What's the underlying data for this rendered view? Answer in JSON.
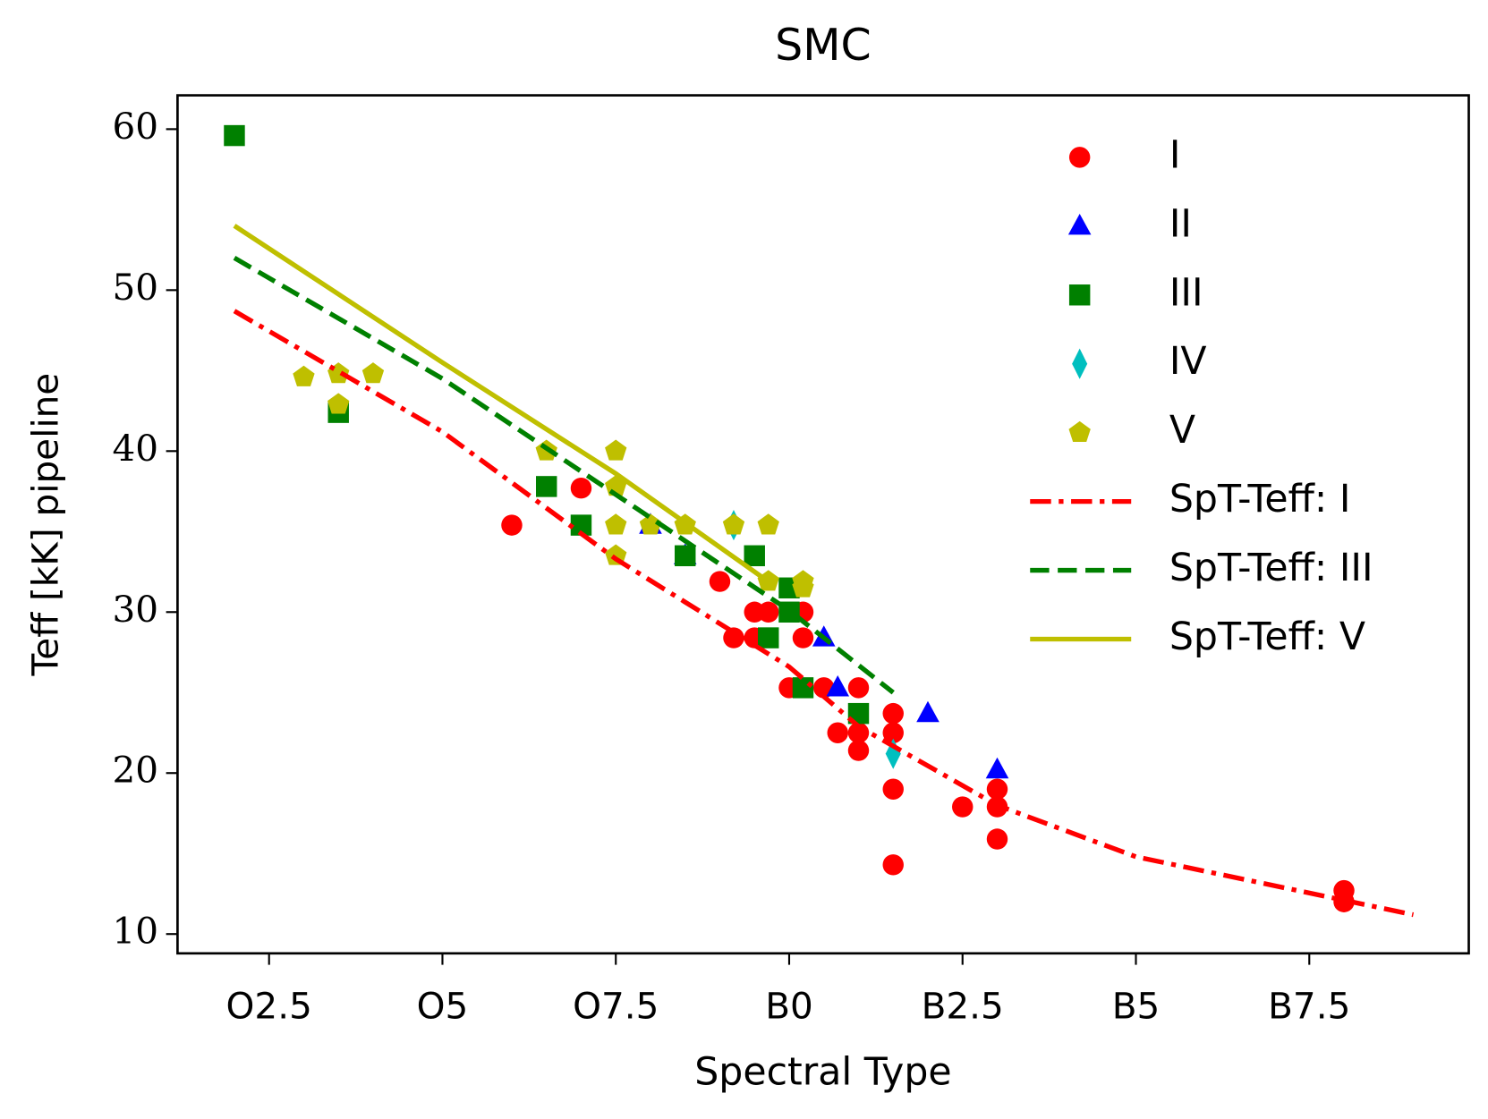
{
  "chart_data": {
    "type": "scatter",
    "title": "SMC",
    "xlabel": "Spectral Type",
    "ylabel": "Teff [kK] pipeline",
    "xlim": [
      1.18,
      19.8
    ],
    "ylim": [
      8.8,
      62.1
    ],
    "xticks": [
      {
        "value": 2.5,
        "label": "O2.5"
      },
      {
        "value": 5,
        "label": "O5"
      },
      {
        "value": 7.5,
        "label": "O7.5"
      },
      {
        "value": 10,
        "label": "B0"
      },
      {
        "value": 12.5,
        "label": "B2.5"
      },
      {
        "value": 15,
        "label": "B5"
      },
      {
        "value": 17.5,
        "label": "B7.5"
      }
    ],
    "yticks": [
      10,
      20,
      30,
      40,
      50,
      60
    ],
    "legend": "upper right",
    "series": [
      {
        "name": "I",
        "color": "#ff0000",
        "marker": "circle",
        "x": [
          6.0,
          7.0,
          9.0,
          9.2,
          9.5,
          9.5,
          9.7,
          10.2,
          10.2,
          10.0,
          10.5,
          11.0,
          10.7,
          11.0,
          11.0,
          11.5,
          11.5,
          11.5,
          11.5,
          12.5,
          13.0,
          13.0,
          13.0,
          18.0,
          18.0
        ],
        "values": [
          35.4,
          37.7,
          31.9,
          28.4,
          30.0,
          28.4,
          30.0,
          30.0,
          28.4,
          25.3,
          25.3,
          25.3,
          22.5,
          22.5,
          21.4,
          23.7,
          22.5,
          19.0,
          14.3,
          17.9,
          19.0,
          17.9,
          15.9,
          12.7,
          12.0
        ]
      },
      {
        "name": "II",
        "color": "#0000ff",
        "marker": "triangle",
        "x": [
          8.0,
          8.5,
          10.5,
          10.7,
          12.0,
          13.0
        ],
        "values": [
          35.4,
          33.5,
          28.4,
          25.3,
          23.7,
          20.2
        ]
      },
      {
        "name": "III",
        "color": "#008000",
        "marker": "square",
        "x": [
          2.0,
          3.5,
          6.5,
          7.0,
          8.5,
          9.5,
          9.7,
          10.0,
          10.0,
          10.2,
          11.0
        ],
        "values": [
          59.6,
          42.4,
          37.8,
          35.4,
          33.5,
          33.5,
          28.4,
          31.5,
          30.0,
          25.3,
          23.7
        ]
      },
      {
        "name": "IV",
        "color": "#00bfbf",
        "marker": "diamond",
        "x": [
          9.2,
          11.5
        ],
        "values": [
          35.4,
          21.2
        ]
      },
      {
        "name": "V",
        "color": "#bfbf00",
        "marker": "pentagon",
        "x": [
          3.0,
          3.5,
          3.5,
          4.0,
          6.5,
          7.5,
          7.5,
          7.5,
          7.5,
          8.0,
          8.5,
          9.2,
          9.7,
          9.7,
          10.2,
          10.2
        ],
        "values": [
          44.6,
          44.8,
          42.9,
          44.8,
          40.0,
          40.0,
          37.8,
          35.4,
          33.5,
          35.4,
          35.4,
          35.4,
          35.4,
          31.9,
          31.9,
          31.5
        ]
      },
      {
        "name": "SpT-Teff: I",
        "color": "#ff0000",
        "linestyle": "dashdot",
        "x": [
          2,
          5,
          7.5,
          10,
          11,
          13,
          15,
          19
        ],
        "values": [
          48.7,
          41.2,
          33.3,
          26.6,
          22.9,
          18.0,
          14.8,
          11.2
        ]
      },
      {
        "name": "SpT-Teff: III",
        "color": "#008000",
        "linestyle": "dashed",
        "x": [
          2,
          5,
          7.5,
          10,
          11.5
        ],
        "values": [
          52.0,
          44.5,
          37.3,
          30.1,
          25.0
        ]
      },
      {
        "name": "SpT-Teff: V",
        "color": "#bfbf00",
        "linestyle": "solid",
        "x": [
          2,
          5,
          7.5,
          9.6
        ],
        "values": [
          54.0,
          45.5,
          38.6,
          32.2
        ]
      }
    ]
  }
}
